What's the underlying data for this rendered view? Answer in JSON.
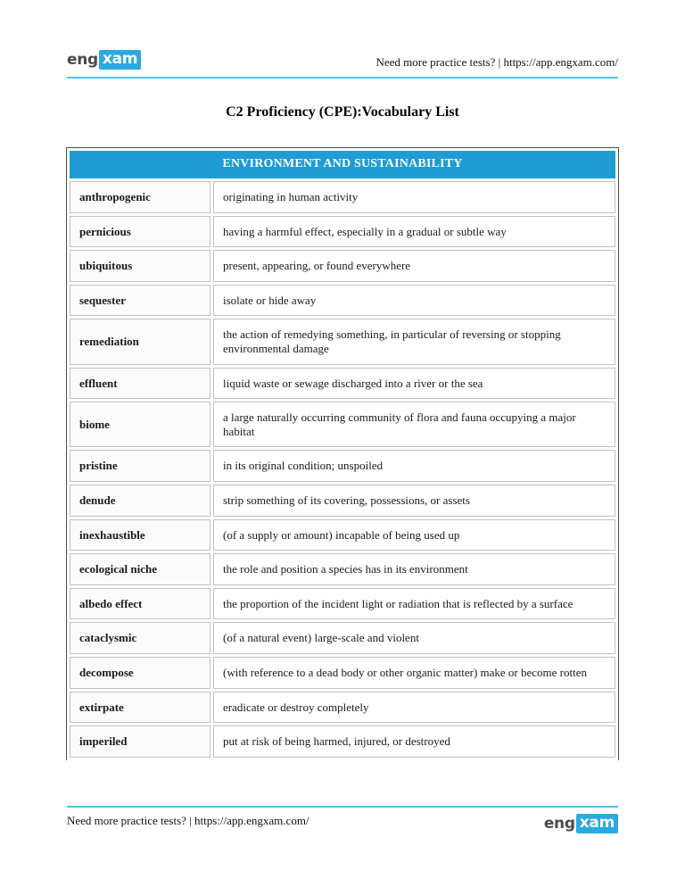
{
  "header": {
    "logo": {
      "part1": "eng",
      "part2": "xam"
    },
    "link_text": "Need more practice tests? | https://app.engxam.com/"
  },
  "title": "C2 Proficiency (CPE):Vocabulary List",
  "table": {
    "section_header": "ENVIRONMENT AND SUSTAINABILITY",
    "rows": [
      {
        "word": "anthropogenic",
        "definition": "originating in human activity"
      },
      {
        "word": "pernicious",
        "definition": "having a harmful effect, especially in a gradual or subtle way"
      },
      {
        "word": "ubiquitous",
        "definition": "present, appearing, or found everywhere"
      },
      {
        "word": "sequester",
        "definition": "isolate or hide away"
      },
      {
        "word": "remediation",
        "definition": "the action of remedying something, in particular of reversing or stopping environmental damage"
      },
      {
        "word": "effluent",
        "definition": "liquid waste or sewage discharged into a river or the sea"
      },
      {
        "word": "biome",
        "definition": "a large naturally occurring community of flora and fauna occupying a major habitat"
      },
      {
        "word": "pristine",
        "definition": "in its original condition; unspoiled"
      },
      {
        "word": "denude",
        "definition": "strip something of its covering, possessions, or assets"
      },
      {
        "word": "inexhaustible",
        "definition": "(of a supply or amount) incapable of being used up"
      },
      {
        "word": "ecological niche",
        "definition": "the role and position a species has in its environment"
      },
      {
        "word": "albedo effect",
        "definition": "the proportion of the incident light or radiation that is reflected by a surface"
      },
      {
        "word": "cataclysmic",
        "definition": "(of a natural event) large-scale and violent"
      },
      {
        "word": "decompose",
        "definition": "(with reference to a dead body or other organic matter) make or become rotten"
      },
      {
        "word": "extirpate",
        "definition": "eradicate or destroy completely"
      },
      {
        "word": "imperiled",
        "definition": "put at risk of being harmed, injured, or destroyed"
      }
    ]
  },
  "footer": {
    "link_text": "Need more practice tests? | https://app.engxam.com/",
    "logo": {
      "part1": "eng",
      "part2": "xam"
    }
  },
  "colors": {
    "table_header_bg": "#1e9cd3",
    "logo_accent": "#29abe2",
    "rule_accent": "#4cc1e9"
  }
}
